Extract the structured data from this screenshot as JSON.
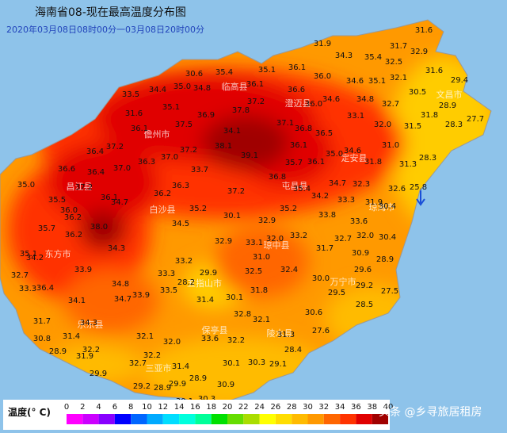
{
  "title": "海南省08-现在最高温度分布图",
  "subtitle": "2020年03月08日08时00分一03月08日20时00分",
  "legend": {
    "label": "温度(° C)",
    "ticks": [
      0,
      2,
      4,
      6,
      8,
      10,
      12,
      14,
      16,
      18,
      20,
      22,
      24,
      26,
      28,
      30,
      32,
      34,
      36,
      38,
      40
    ],
    "colors": [
      "#ff00ff",
      "#cc00ff",
      "#8800ff",
      "#0000ff",
      "#0066ff",
      "#00aaff",
      "#00ddff",
      "#00ffdd",
      "#00ff99",
      "#00e000",
      "#66dd00",
      "#aadd00",
      "#ffff00",
      "#ffdd00",
      "#ffbb00",
      "#ff9900",
      "#ff6600",
      "#ff3300",
      "#e00000",
      "#a00000"
    ]
  },
  "places": [
    "儋州市",
    "临高县",
    "澄迈县",
    "定安县",
    "屯昌县",
    "昌江县",
    "白沙县",
    "东方市",
    "五指山市",
    "琼中县",
    "琼海市",
    "万宁市",
    "乐东县",
    "保亭县",
    "陵水县",
    "三亚市",
    "文昌市"
  ],
  "readings": [
    "31.9",
    "31.6",
    "31.7",
    "34.3",
    "35.4",
    "32.9",
    "32.5",
    "35.1",
    "36.1",
    "30.6",
    "35.4",
    "36.0",
    "34.6",
    "35.1",
    "32.1",
    "31.6",
    "29.4",
    "36.1",
    "36.6",
    "33.5",
    "34.4",
    "35.0",
    "34.8",
    "30.5",
    "34.6",
    "34.8",
    "32.7",
    "37.2",
    "36.0",
    "31.6",
    "35.1",
    "36.9",
    "37.8",
    "28.9",
    "31.8",
    "33.1",
    "37.1",
    "36.8",
    "36.1",
    "37.5",
    "34.1",
    "32.0",
    "31.5",
    "28.3",
    "27.7",
    "36.5",
    "31.0",
    "36.4",
    "37.2",
    "37.2",
    "38.1",
    "39.1",
    "36.1",
    "35.0",
    "34.6",
    "31.8",
    "28.3",
    "36.3",
    "37.0",
    "35.7",
    "36.1",
    "31.3",
    "36.6",
    "36.4",
    "37.0",
    "33.7",
    "36.8",
    "35.0",
    "37.2",
    "36.3",
    "35.4",
    "34.7",
    "32.3",
    "32.6",
    "25.8",
    "36.1",
    "36.2",
    "37.2",
    "34.2",
    "35.5",
    "36.0",
    "34.7",
    "35.2",
    "33.3",
    "31.9",
    "30.4",
    "35.2",
    "30.1",
    "33.8",
    "36.2",
    "32.9",
    "38.0",
    "35.7",
    "34.5",
    "33.6",
    "32.0",
    "30.4",
    "36.2",
    "32.9",
    "33.1",
    "32.0",
    "33.2",
    "32.7",
    "34.3",
    "31.7",
    "35.1",
    "34.2",
    "33.2",
    "31.0",
    "30.9",
    "28.9",
    "33.9",
    "33.3",
    "29.9",
    "32.5",
    "32.4",
    "29.6",
    "32.7",
    "34.8",
    "28.2",
    "30.0",
    "29.2",
    "33.3",
    "36.4",
    "33.5",
    "31.8",
    "29.5",
    "27.5",
    "34.1",
    "34.7",
    "33.9",
    "31.4",
    "30.1",
    "28.5",
    "30.6",
    "32.8",
    "32.1",
    "31.7",
    "34.3",
    "33.6",
    "32.2",
    "31.3",
    "27.6",
    "30.8",
    "31.4",
    "32.1",
    "32.0",
    "28.4",
    "28.9",
    "32.2",
    "31.9",
    "32.2",
    "30.1",
    "30.3",
    "29.1",
    "31.4",
    "32.7",
    "29.9",
    "28.9",
    "29.9",
    "29.2",
    "28.9",
    "30.9",
    "30.1",
    "30.3"
  ],
  "watermark": "头条 @乡寻旅居租房"
}
